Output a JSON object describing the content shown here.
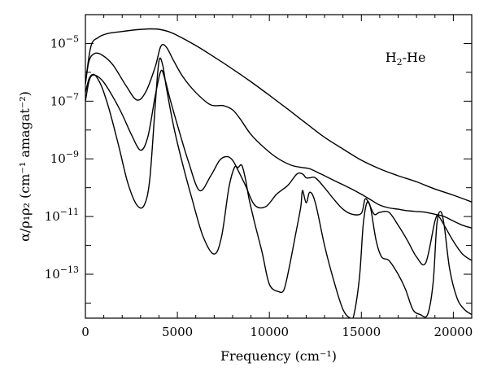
{
  "chart_data": {
    "type": "line",
    "title": "",
    "annotation": {
      "text": "H₂-He"
    },
    "xlabel": "Frequency (cm⁻¹)",
    "ylabel": "α/ρ₁ρ₂ (cm⁻¹ amagat⁻²)",
    "y_scale": "log",
    "xlim": [
      0,
      21000
    ],
    "ylim": [
      3e-15,
      0.0001
    ],
    "grid": false,
    "x_ticks": [
      {
        "value": 0,
        "label": "0"
      },
      {
        "value": 5000,
        "label": "5000"
      },
      {
        "value": 10000,
        "label": "10000"
      },
      {
        "value": 15000,
        "label": "15000"
      },
      {
        "value": 20000,
        "label": "20000"
      }
    ],
    "y_ticks": [
      {
        "value": 1e-05,
        "mantissa": "10",
        "exponent": "−5"
      },
      {
        "value": 1e-07,
        "mantissa": "10",
        "exponent": "−7"
      },
      {
        "value": 1e-09,
        "mantissa": "10",
        "exponent": "−9"
      },
      {
        "value": 1e-11,
        "mantissa": "10",
        "exponent": "−11"
      },
      {
        "value": 1e-13,
        "mantissa": "10",
        "exponent": "−13"
      }
    ],
    "series": [
      {
        "x": [
          0,
          300,
          700,
          1200,
          2000,
          2800,
          3500,
          4000,
          4500,
          5000,
          6000,
          7000,
          8000,
          9000,
          10000,
          11000,
          12000,
          13000,
          14000,
          15000,
          16000,
          17000,
          18000,
          19000,
          20000,
          21000
        ],
        "y": [
          4e-07,
          8e-06,
          1.6e-05,
          2.2e-05,
          2.6e-05,
          3e-05,
          3.2e-05,
          3.1e-05,
          2.6e-05,
          1.9e-05,
          8.5e-06,
          3.4e-06,
          1.3e-06,
          4.7e-07,
          1.6e-07,
          5.3e-08,
          1.7e-08,
          5.6e-09,
          2.2e-09,
          9e-10,
          4.5e-10,
          2.6e-10,
          1.6e-10,
          9e-11,
          5.5e-11,
          3.2e-11
        ]
      },
      {
        "x": [
          0,
          200,
          500,
          900,
          1500,
          2200,
          2800,
          3300,
          3800,
          4100,
          4400,
          4800,
          5300,
          6000,
          6800,
          7500,
          8000,
          8400,
          9000,
          9800,
          10500,
          11200,
          11800,
          12200,
          12800,
          13500,
          14200,
          14800,
          15200,
          15600,
          16000,
          16500,
          17000,
          17500,
          18000,
          18500,
          19000,
          19500,
          20000,
          20500,
          21000
        ],
        "y": [
          4e-07,
          2.5e-06,
          4.5e-06,
          4e-06,
          1.8e-06,
          3.5e-07,
          1.1e-07,
          2.2e-07,
          1.6e-06,
          8e-06,
          7.5e-06,
          2.5e-06,
          7e-07,
          2e-07,
          7.5e-08,
          7e-08,
          5e-08,
          2.5e-08,
          7e-09,
          2.2e-09,
          1e-09,
          6e-10,
          5e-10,
          4.5e-10,
          3e-10,
          1.8e-10,
          1.1e-10,
          7e-11,
          5e-11,
          3.5e-11,
          2.5e-11,
          2e-11,
          1.8e-11,
          1.6e-11,
          1.5e-11,
          1.4e-11,
          1.2e-11,
          1e-11,
          7e-12,
          5e-12,
          4e-12
        ]
      },
      {
        "x": [
          0,
          200,
          400,
          700,
          1000,
          1500,
          2000,
          2500,
          3000,
          3400,
          3800,
          4100,
          4300,
          4600,
          5000,
          5600,
          6200,
          6800,
          7300,
          7700,
          8000,
          8300,
          8700,
          9200,
          9800,
          10400,
          11000,
          11500,
          11800,
          12000,
          12200,
          12500,
          13000,
          13500,
          14000,
          14500,
          15000,
          15200,
          15400,
          15700,
          16000,
          16500,
          17000,
          17500,
          18000,
          18500,
          19000,
          19200,
          19500,
          20000,
          20500,
          21000
        ],
        "y": [
          1e-07,
          5e-07,
          8e-07,
          7e-07,
          4.5e-07,
          1.4e-07,
          3.5e-08,
          7e-09,
          2e-09,
          6e-09,
          1.6e-07,
          1.1e-06,
          6.5e-07,
          1.2e-07,
          1.5e-08,
          8e-10,
          8e-11,
          2.5e-10,
          9e-10,
          1.2e-09,
          9e-10,
          4e-10,
          1.2e-10,
          2.5e-11,
          2.2e-11,
          6e-11,
          1.2e-10,
          3e-10,
          3e-10,
          2.2e-10,
          2.2e-10,
          2.2e-10,
          1e-10,
          4e-11,
          1.8e-11,
          1.2e-11,
          1.3e-11,
          4e-11,
          3e-11,
          1.2e-11,
          1.4e-11,
          1.4e-11,
          5e-12,
          1.5e-12,
          4e-13,
          2.5e-13,
          7e-12,
          1e-11,
          5e-12,
          1.4e-12,
          5e-13,
          3e-13
        ]
      },
      {
        "x": [
          0,
          200,
          400,
          600,
          900,
          1300,
          1800,
          2300,
          2800,
          3200,
          3500,
          3800,
          4000,
          4200,
          4400,
          4800,
          5300,
          5800,
          6400,
          7000,
          7400,
          7800,
          8100,
          8300,
          8500,
          8700,
          8900,
          9200,
          9600,
          10000,
          10500,
          10800,
          11100,
          11400,
          11700,
          11800,
          12000,
          12200,
          12500,
          13000,
          13500,
          14000,
          14400,
          14600,
          14900,
          15100,
          15300,
          15500,
          15800,
          16100,
          16500,
          17000,
          17400,
          17800,
          18200,
          18600,
          18900,
          19100,
          19300,
          19500,
          19800,
          20200,
          20600,
          21000
        ],
        "y": [
          2e-07,
          6e-07,
          8.5e-07,
          7e-07,
          3e-07,
          5e-08,
          3e-09,
          1.5e-10,
          2.5e-11,
          2.5e-11,
          2e-10,
          8e-08,
          2.5e-06,
          1.8e-06,
          3e-07,
          1.3e-08,
          6e-10,
          4e-11,
          2e-12,
          5e-13,
          2e-12,
          1e-10,
          5e-10,
          5e-10,
          6e-10,
          2e-10,
          4e-11,
          6e-12,
          6e-13,
          4.5e-14,
          2.5e-14,
          3e-14,
          2e-13,
          2e-12,
          2e-11,
          8e-11,
          3e-11,
          7e-11,
          3e-11,
          1e-12,
          6e-14,
          6e-15,
          3e-15,
          4e-15,
          8e-14,
          5e-12,
          3e-11,
          2e-11,
          1.5e-12,
          4e-13,
          3e-13,
          1e-13,
          3e-14,
          6e-15,
          4e-15,
          4e-15,
          5e-14,
          5e-12,
          1.5e-11,
          5e-12,
          1.5e-13,
          1.5e-14,
          6e-15,
          4e-15
        ]
      }
    ]
  }
}
